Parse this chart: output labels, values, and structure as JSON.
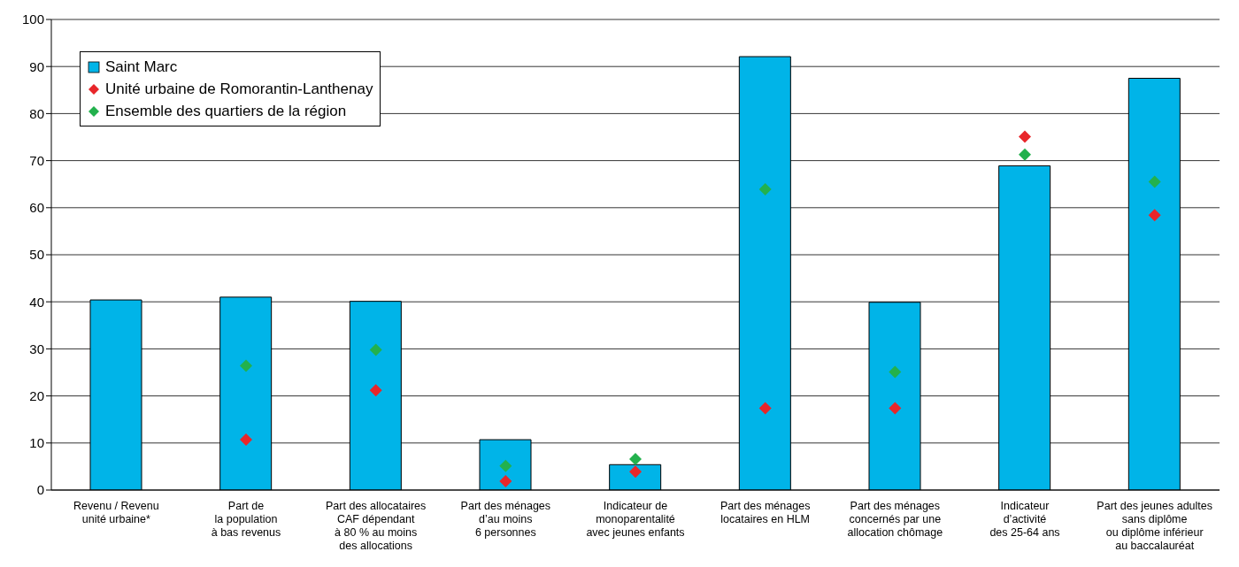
{
  "chart_data": {
    "type": "bar",
    "categories": [
      "Revenu / Revenu\nunité urbaine*",
      "Part de\nla population\nà bas revenus",
      "Part des allocataires\nCAF dépendant\nà 80 % au moins\ndes allocations",
      "Part des ménages\nd’au moins\n6 personnes",
      "Indicateur de\nmonoparentalité\navec jeunes enfants",
      "Part des ménages\nlocataires en HLM",
      "Part des ménages\nconcernés par une\nallocation chômage",
      "Indicateur\nd’activité\ndes 25-64 ans",
      "Part des jeunes adultes\nsans diplôme\nou diplôme inférieur\nau baccalauréat"
    ],
    "series": [
      {
        "name": "Saint Marc",
        "color": "#00b4e8",
        "values": [
          40.4,
          41.0,
          40.1,
          10.7,
          5.4,
          92.1,
          39.9,
          68.9,
          87.5
        ]
      },
      {
        "name": "Unité urbaine de Romorantin-Lanthenay",
        "type": "scatter",
        "color": "#e8262a",
        "values": [
          null,
          10.7,
          21.2,
          1.9,
          3.9,
          17.4,
          17.4,
          75.1,
          58.4
        ]
      },
      {
        "name": "Ensemble des quartiers de la région",
        "type": "scatter",
        "color": "#23b14d",
        "values": [
          null,
          26.4,
          29.8,
          5.1,
          6.6,
          63.9,
          25.1,
          71.3,
          65.5
        ]
      }
    ],
    "ylim": [
      0,
      100
    ],
    "yticks": [
      0,
      10,
      20,
      30,
      40,
      50,
      60,
      70,
      80,
      90,
      100
    ],
    "grid": "y",
    "legend": "top left",
    "marker": "diamond"
  }
}
